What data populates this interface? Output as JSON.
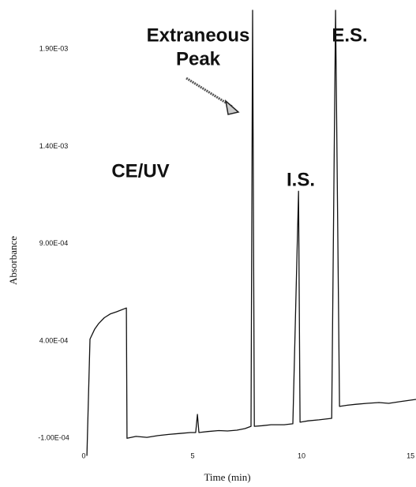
{
  "chart_data": {
    "type": "line",
    "x_label": "Time (min)",
    "y_label": "Absorbance",
    "annotations": [
      "CE/UV",
      "Extraneous",
      "Peak",
      "I.S.",
      "E.S."
    ],
    "x": [
      0.15,
      0.29,
      0.5,
      0.69,
      0.95,
      1.23,
      1.5,
      1.96,
      1.99,
      2.4,
      2.9,
      3.41,
      3.9,
      4.4,
      4.9,
      5.14,
      5.22,
      5.29,
      5.7,
      6.2,
      6.6,
      7.03,
      7.4,
      7.68,
      7.75,
      7.83,
      8.2,
      8.6,
      9.2,
      9.6,
      9.86,
      9.93,
      10.3,
      10.8,
      11.38,
      11.56,
      11.74,
      12.1,
      12.5,
      13.0,
      13.55,
      14.0,
      14.6,
      15.25
    ],
    "series": [
      {
        "color": "#111111",
        "values": [
          -0.00019,
          0.00041,
          0.00046,
          0.00049,
          0.00052,
          0.00054,
          0.00055,
          0.00057,
          -0.0001,
          -9e-05,
          -9.5e-05,
          -8.6e-05,
          -8e-05,
          -7.5e-05,
          -7e-05,
          -7e-05,
          2.3e-05,
          -7e-05,
          -6.5e-05,
          -6e-05,
          -6.2e-05,
          -5.8e-05,
          -5e-05,
          -3.8e-05,
          0.0021,
          -3.8e-05,
          -3.5e-05,
          -3e-05,
          -3e-05,
          -2.5e-05,
          0.00117,
          -1.7e-05,
          -1e-05,
          -5e-06,
          3e-06,
          0.0021,
          6.4e-05,
          7e-05,
          7.5e-05,
          8e-05,
          8.4e-05,
          8e-05,
          9e-05,
          0.0001
        ]
      }
    ],
    "xlim": [
      0,
      15.25
    ],
    "xticks": [
      0,
      5,
      10,
      15
    ],
    "ylim": [
      -0.0002,
      0.0021
    ],
    "yticks": [
      {
        "value": -0.0001,
        "label": "-1.00E-04"
      },
      {
        "value": 0.0004,
        "label": "4.00E-04"
      },
      {
        "value": 0.0009,
        "label": "9.00E-04"
      },
      {
        "value": 0.0014,
        "label": "1.40E-03"
      },
      {
        "value": 0.0019,
        "label": "1.90E-03"
      }
    ],
    "grid": false
  }
}
